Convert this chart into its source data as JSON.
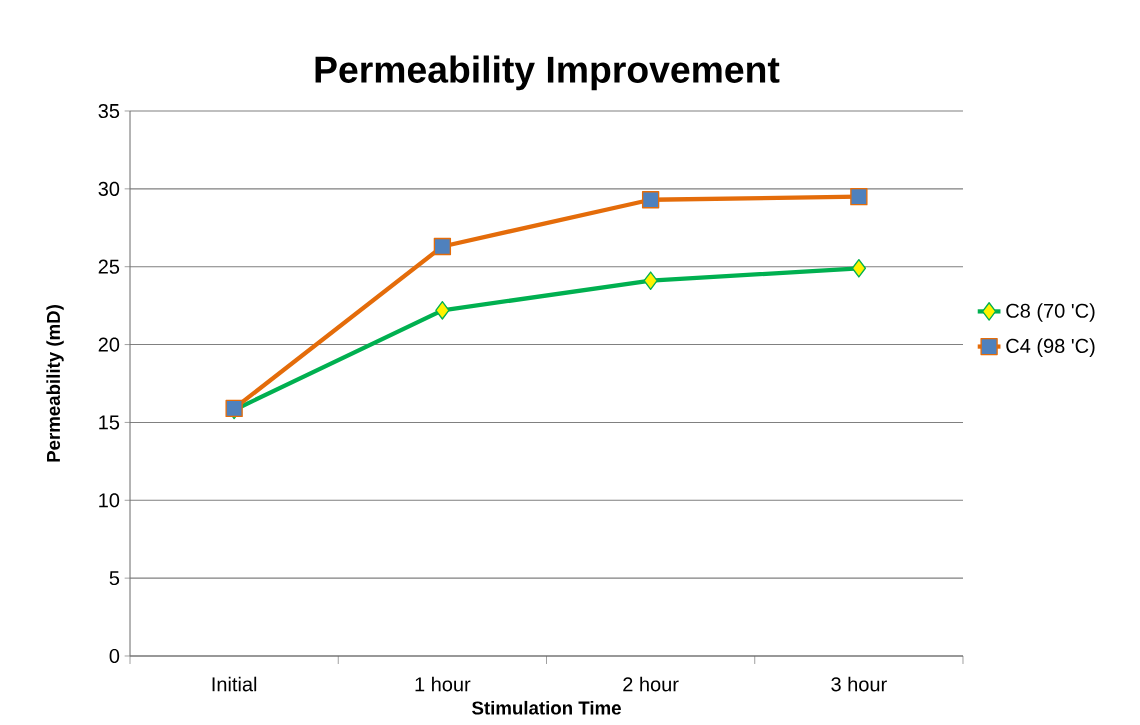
{
  "chart_data": {
    "type": "line",
    "title": "Permeability Improvement",
    "xlabel": "Stimulation Time",
    "ylabel": "Permeability (mD)",
    "categories": [
      "Initial",
      "1 hour",
      "2 hour",
      "3 hour"
    ],
    "series": [
      {
        "name": "C8 (70 'C)",
        "color": "#00b050",
        "marker": "diamond",
        "values": [
          15.8,
          22.2,
          24.1,
          24.9
        ]
      },
      {
        "name": "C4 (98 'C)",
        "color": "#e46c0a",
        "marker": "square",
        "values": [
          15.9,
          26.3,
          29.3,
          29.5
        ]
      }
    ],
    "ylim": [
      0,
      35
    ],
    "yticks": [
      0,
      5,
      10,
      15,
      20,
      25,
      30,
      35
    ],
    "grid": "y",
    "legend": "right",
    "line_style": "solid"
  }
}
